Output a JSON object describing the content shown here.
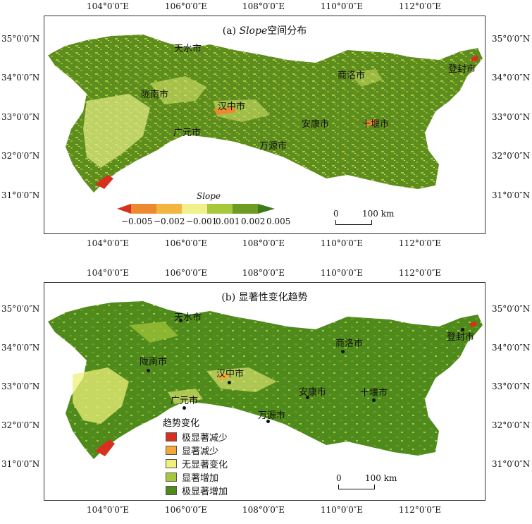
{
  "colors": {
    "region_fill": "#5e8d1f",
    "region_light": "#a9c93a",
    "region_pale": "#e8ef87",
    "slope_scale": [
      "#d7301f",
      "#ec8a32",
      "#f2b640",
      "#f2f08c",
      "#a6c83a",
      "#6e9b24",
      "#3d7a1c"
    ],
    "trend_scale": [
      "#d7301f",
      "#f2a93b",
      "#eef07a",
      "#a6c83a",
      "#4f8a1c"
    ]
  },
  "axes": {
    "x_ticks": [
      "104°0′0″E",
      "106°0′0″E",
      "108°0′0″E",
      "110°0′0″E",
      "112°0′0″E"
    ],
    "y_ticks": [
      "35°0′0″N",
      "34°0′0″N",
      "33°0′0″N",
      "32°0′0″N",
      "31°0′0″N"
    ]
  },
  "panel_a": {
    "title_prefix": "(a) ",
    "title_italic": "Slope",
    "title_suffix": "空间分布",
    "legend": {
      "title": "Slope",
      "labels": [
        "−0.005",
        "−0.002",
        "−0.001",
        "0.001",
        "0.002",
        "0.005"
      ]
    },
    "scale": {
      "zero": "0",
      "dist": "100 km"
    }
  },
  "panel_b": {
    "title": "(b) 显著性变化趋势",
    "legend": {
      "title": "趋势变化",
      "items": [
        {
          "label": "极显著减少",
          "color": "#d7301f"
        },
        {
          "label": "显著减少",
          "color": "#f2a93b"
        },
        {
          "label": "无显著变化",
          "color": "#eef07a"
        },
        {
          "label": "显著增加",
          "color": "#a6c83a"
        },
        {
          "label": "极显著增加",
          "color": "#4f8a1c"
        }
      ]
    },
    "scale": {
      "zero": "0",
      "dist": "100 km"
    }
  },
  "cities": {
    "tianshui": "天水市",
    "shangluo": "商洛市",
    "dengfeng": "登封市",
    "longnan": "陇南市",
    "hanzhong": "汉中市",
    "ankang": "安康市",
    "shiyan": "十堰市",
    "guangyuan": "广元市",
    "wanyuan": "万源市"
  }
}
